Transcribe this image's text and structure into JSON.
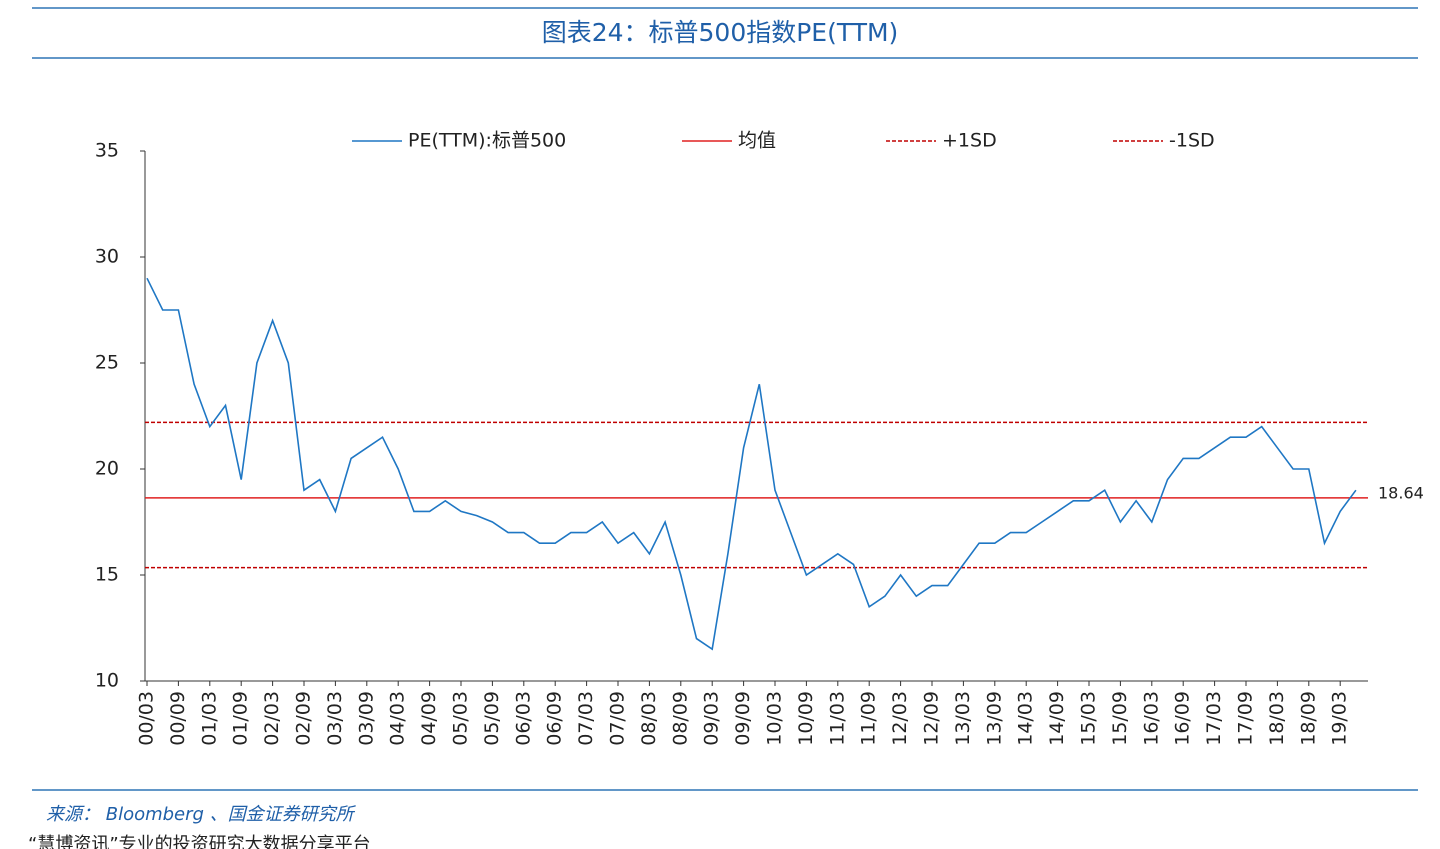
{
  "chart_data": {
    "type": "line",
    "title": "图表24：标普500指数PE(TTM)",
    "source": "来源： Bloomberg 、国金证券研究所",
    "footer": "“慧博资讯”专业的投资研究大数据分享平台",
    "x": [
      "00/03",
      null,
      "00/09",
      null,
      "01/03",
      null,
      "01/09",
      null,
      "02/03",
      null,
      "02/09",
      null,
      "03/03",
      null,
      "03/09",
      null,
      "04/03",
      null,
      "04/09",
      null,
      "05/03",
      null,
      "05/09",
      null,
      "06/03",
      null,
      "06/09",
      null,
      "07/03",
      null,
      "07/09",
      null,
      "08/03",
      null,
      "08/09",
      null,
      "09/03",
      null,
      "09/09",
      null,
      "10/03",
      null,
      "10/09",
      null,
      "11/03",
      null,
      "11/09",
      null,
      "12/03",
      null,
      "12/09",
      null,
      "13/03",
      null,
      "13/09",
      null,
      "14/03",
      null,
      "14/09",
      null,
      "15/03",
      null,
      "15/09",
      null,
      "16/03",
      null,
      "16/09",
      null,
      "17/03",
      null,
      "17/09",
      null,
      "18/03",
      null,
      "18/09",
      null,
      "19/03",
      null
    ],
    "series": [
      {
        "name": "PE(TTM):标普500",
        "color": "#1f77c4",
        "values": [
          29,
          27.5,
          27.5,
          24,
          22,
          23,
          19.5,
          25,
          27,
          25,
          19,
          19.5,
          18,
          20.5,
          21,
          21.5,
          20,
          18,
          18,
          18.5,
          18,
          17.8,
          17.5,
          17,
          17,
          16.5,
          16.5,
          17,
          17,
          17.5,
          16.5,
          17,
          16,
          17.5,
          15,
          12,
          11.5,
          16,
          21,
          24,
          19,
          17,
          15,
          15.5,
          16,
          15.5,
          13.5,
          14,
          15,
          14,
          14.5,
          14.5,
          15.5,
          16.5,
          16.5,
          17,
          17,
          17.5,
          18,
          18.5,
          18.5,
          19,
          17.5,
          18.5,
          17.5,
          19.5,
          20.5,
          20.5,
          21,
          21.5,
          21.5,
          22,
          21,
          20,
          20,
          16.5,
          18,
          19
        ]
      }
    ],
    "reference_lines": [
      {
        "name": "均值",
        "value": 18.64,
        "color": "#e02020",
        "dashed": false
      },
      {
        "name": "+1SD",
        "value": 22.2,
        "color": "#c00000",
        "dashed": true
      },
      {
        "name": "-1SD",
        "value": 15.35,
        "color": "#c00000",
        "dashed": true
      }
    ],
    "ylim": [
      10,
      35
    ],
    "yticks": [
      10,
      15,
      20,
      25,
      30,
      35
    ]
  }
}
